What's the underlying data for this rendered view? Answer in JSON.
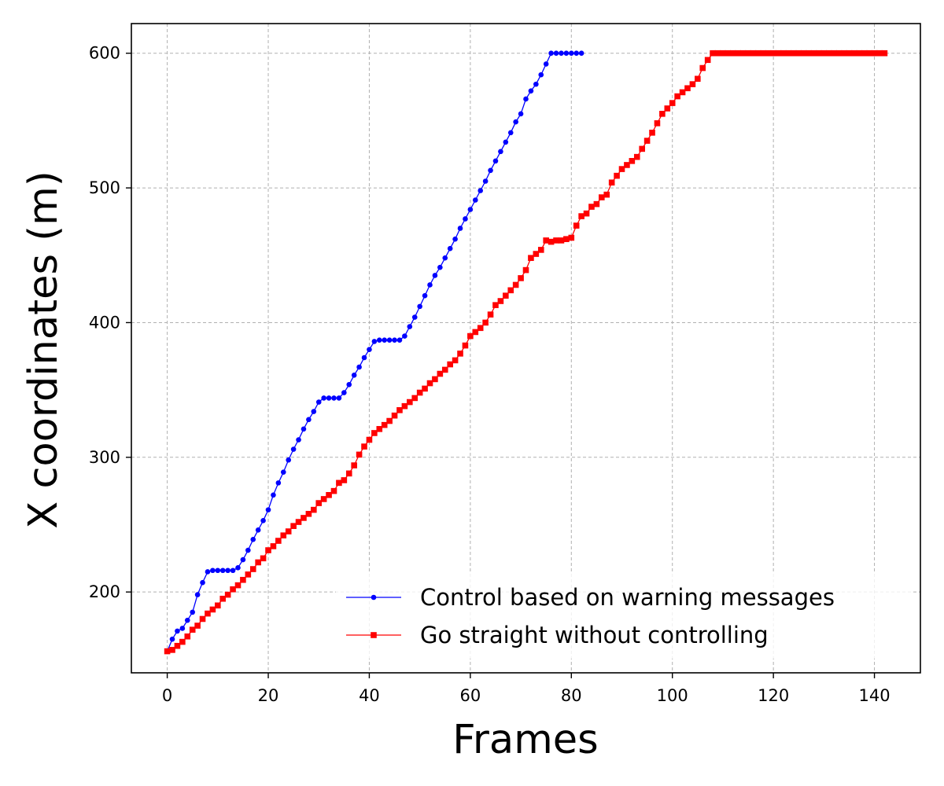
{
  "chart_data": {
    "type": "line",
    "title": "",
    "xlabel": "Frames",
    "ylabel": "X coordinates (m)",
    "xlim": [
      -7.1,
      149.1
    ],
    "ylim": [
      140,
      622
    ],
    "xticks": [
      0,
      20,
      40,
      60,
      80,
      100,
      120,
      140
    ],
    "yticks": [
      200,
      300,
      400,
      500,
      600
    ],
    "xtick_labels": [
      "0",
      "20",
      "40",
      "60",
      "80",
      "100",
      "120",
      "140"
    ],
    "ytick_labels": [
      "200",
      "300",
      "400",
      "500",
      "600"
    ],
    "grid": true,
    "legend_position": "lower-right",
    "series": [
      {
        "name": "Control based on warning messages",
        "color": "#0000ff",
        "marker": "circle",
        "x": [
          0,
          1,
          2,
          3,
          4,
          5,
          6,
          7,
          8,
          9,
          10,
          11,
          12,
          13,
          14,
          15,
          16,
          17,
          18,
          19,
          20,
          21,
          22,
          23,
          24,
          25,
          26,
          27,
          28,
          29,
          30,
          31,
          32,
          33,
          34,
          35,
          36,
          37,
          38,
          39,
          40,
          41,
          42,
          43,
          44,
          45,
          46,
          47,
          48,
          49,
          50,
          51,
          52,
          53,
          54,
          55,
          56,
          57,
          58,
          59,
          60,
          61,
          62,
          63,
          64,
          65,
          66,
          67,
          68,
          69,
          70,
          71,
          72,
          73,
          74,
          75,
          76,
          77,
          78,
          79,
          80,
          81,
          82
        ],
        "y": [
          156,
          165,
          171,
          173,
          179,
          185,
          198,
          207,
          215,
          216,
          216,
          216,
          216,
          216,
          218,
          224,
          231,
          239,
          246,
          253,
          261,
          272,
          281,
          289,
          298,
          306,
          313,
          321,
          328,
          334,
          341,
          344,
          344,
          344,
          344,
          348,
          354,
          361,
          367,
          374,
          380,
          386,
          387,
          387,
          387,
          387,
          387,
          390,
          397,
          404,
          412,
          420,
          428,
          435,
          441,
          448,
          455,
          462,
          470,
          477,
          484,
          491,
          498,
          505,
          513,
          520,
          527,
          534,
          541,
          549,
          555,
          566,
          572,
          577,
          584,
          592,
          600,
          600,
          600,
          600,
          600,
          600,
          600
        ]
      },
      {
        "name": "Go straight without controlling",
        "color": "#ff0000",
        "marker": "square",
        "x": [
          0,
          1,
          2,
          3,
          4,
          5,
          6,
          7,
          8,
          9,
          10,
          11,
          12,
          13,
          14,
          15,
          16,
          17,
          18,
          19,
          20,
          21,
          22,
          23,
          24,
          25,
          26,
          27,
          28,
          29,
          30,
          31,
          32,
          33,
          34,
          35,
          36,
          37,
          38,
          39,
          40,
          41,
          42,
          43,
          44,
          45,
          46,
          47,
          48,
          49,
          50,
          51,
          52,
          53,
          54,
          55,
          56,
          57,
          58,
          59,
          60,
          61,
          62,
          63,
          64,
          65,
          66,
          67,
          68,
          69,
          70,
          71,
          72,
          73,
          74,
          75,
          76,
          77,
          78,
          79,
          80,
          81,
          82,
          83,
          84,
          85,
          86,
          87,
          88,
          89,
          90,
          91,
          92,
          93,
          94,
          95,
          96,
          97,
          98,
          99,
          100,
          101,
          102,
          103,
          104,
          105,
          106,
          107,
          108,
          109,
          110,
          111,
          112,
          113,
          114,
          115,
          116,
          117,
          118,
          119,
          120,
          121,
          122,
          123,
          124,
          125,
          126,
          127,
          128,
          129,
          130,
          131,
          132,
          133,
          134,
          135,
          136,
          137,
          138,
          139,
          140,
          141,
          142
        ],
        "y": [
          156,
          157,
          160,
          163,
          167,
          172,
          175,
          180,
          184,
          187,
          190,
          195,
          198,
          202,
          205,
          209,
          213,
          217,
          222,
          225,
          231,
          234,
          238,
          242,
          245,
          249,
          252,
          255,
          258,
          261,
          266,
          269,
          272,
          275,
          281,
          283,
          288,
          294,
          302,
          308,
          313,
          318,
          321,
          324,
          327,
          331,
          335,
          338,
          341,
          344,
          348,
          351,
          355,
          358,
          362,
          365,
          369,
          372,
          377,
          383,
          390,
          393,
          396,
          400,
          406,
          413,
          416,
          420,
          424,
          428,
          433,
          439,
          448,
          451,
          454,
          461,
          460,
          461,
          461,
          462,
          463,
          472,
          479,
          481,
          486,
          488,
          493,
          495,
          504,
          509,
          514,
          517,
          520,
          523,
          529,
          535,
          541,
          548,
          555,
          559,
          563,
          568,
          571,
          574,
          577,
          581,
          589,
          595,
          600,
          600,
          600,
          600,
          600,
          600,
          600,
          600,
          600,
          600,
          600,
          600,
          600,
          600,
          600,
          600,
          600,
          600,
          600,
          600,
          600,
          600,
          600,
          600,
          600,
          600,
          600,
          600,
          600,
          600,
          600,
          600,
          600,
          600,
          600
        ]
      }
    ]
  }
}
